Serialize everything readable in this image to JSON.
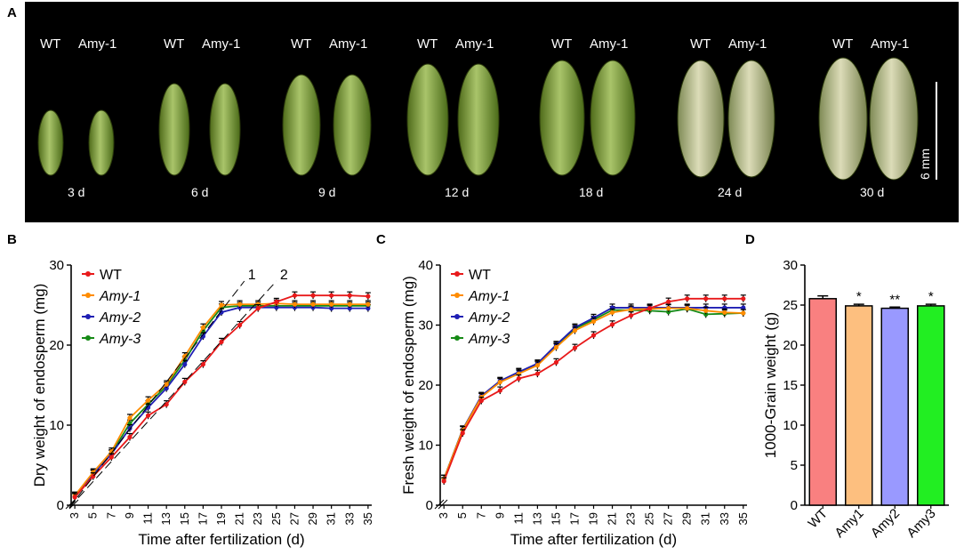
{
  "panel_labels": {
    "a": "A",
    "b": "B",
    "c": "C",
    "d": "D"
  },
  "photo": {
    "genotype_labels": [
      "WT",
      "Amy-1"
    ],
    "days": [
      "3 d",
      "6 d",
      "9 d",
      "12 d",
      "18 d",
      "24 d",
      "30 d"
    ],
    "scale_bar": "6 mm"
  },
  "colors": {
    "WT": "#e8191a",
    "Amy-1": "#ff8c00",
    "Amy-2": "#1f1fb4",
    "Amy-3": "#168a16"
  },
  "chart_data": [
    {
      "id": "B",
      "type": "line",
      "xlabel": "Time after fertilization (d)",
      "ylabel": "Dry weight of endosperm (mg)",
      "ylim": [
        0,
        30
      ],
      "yticks": [
        0,
        10,
        20,
        30
      ],
      "x": [
        3,
        5,
        7,
        9,
        11,
        13,
        15,
        17,
        19,
        21,
        23,
        25,
        27,
        29,
        31,
        33,
        35
      ],
      "series": [
        {
          "name": "WT",
          "values": [
            1.0,
            3.6,
            6.0,
            8.5,
            11.2,
            12.6,
            15.4,
            17.6,
            20.4,
            22.5,
            24.6,
            25.4,
            26.2,
            26.2,
            26.2,
            26.2,
            26.1
          ]
        },
        {
          "name": "Amy-1",
          "values": [
            1.2,
            4.1,
            6.7,
            10.9,
            13.1,
            15.1,
            18.6,
            22.2,
            25.0,
            25.1,
            25.1,
            25.2,
            25.1,
            25.1,
            25.1,
            25.1,
            25.1
          ]
        },
        {
          "name": "Amy-2",
          "values": [
            1.1,
            3.9,
            6.4,
            9.6,
            12.2,
            14.6,
            17.6,
            21.1,
            24.1,
            24.7,
            24.7,
            24.7,
            24.7,
            24.7,
            24.6,
            24.6,
            24.6
          ]
        },
        {
          "name": "Amy-3",
          "values": [
            1.1,
            4.0,
            6.5,
            10.2,
            12.6,
            14.9,
            18.1,
            21.8,
            24.7,
            24.9,
            24.9,
            24.9,
            24.9,
            24.9,
            24.9,
            24.9,
            24.9
          ]
        }
      ],
      "annotations": [
        "1",
        "2"
      ]
    },
    {
      "id": "C",
      "type": "line",
      "xlabel": "Time after fertilization (d)",
      "ylabel": "Fresh weight of endosperm (mg)",
      "ylim": [
        0,
        40
      ],
      "yticks": [
        0,
        10,
        20,
        30,
        40
      ],
      "x": [
        3,
        5,
        7,
        9,
        11,
        13,
        15,
        17,
        19,
        21,
        23,
        25,
        27,
        29,
        31,
        33,
        35
      ],
      "series": [
        {
          "name": "WT",
          "values": [
            4.0,
            12.0,
            17.4,
            19.1,
            21.1,
            21.9,
            23.8,
            26.2,
            28.3,
            30.1,
            31.6,
            32.8,
            33.9,
            34.4,
            34.4,
            34.4,
            34.4
          ]
        },
        {
          "name": "Amy-1",
          "values": [
            4.4,
            12.5,
            18.0,
            20.5,
            21.9,
            23.3,
            26.3,
            29.1,
            30.6,
            32.1,
            32.6,
            32.7,
            32.8,
            32.8,
            32.4,
            32.1,
            32.0
          ]
        },
        {
          "name": "Amy-2",
          "values": [
            4.4,
            12.6,
            18.2,
            20.7,
            22.2,
            23.6,
            26.7,
            29.6,
            31.2,
            32.9,
            32.9,
            32.9,
            32.9,
            32.9,
            32.9,
            32.9,
            32.9
          ]
        },
        {
          "name": "Amy-3",
          "values": [
            4.4,
            12.6,
            18.1,
            20.6,
            22.1,
            23.5,
            26.5,
            29.4,
            30.9,
            32.5,
            32.5,
            32.4,
            32.2,
            32.7,
            31.8,
            31.9,
            32.0
          ]
        }
      ]
    },
    {
      "id": "D",
      "type": "bar",
      "categories": [
        "WT",
        "Amy1",
        "Amy2",
        "Amy3"
      ],
      "values": [
        25.8,
        24.9,
        24.6,
        24.9
      ],
      "errors": [
        0.35,
        0.2,
        0.15,
        0.2
      ],
      "significance": [
        "",
        "*",
        "**",
        "*"
      ],
      "bar_colors": [
        "#f98080",
        "#fdbf7f",
        "#9999ff",
        "#22ee22"
      ],
      "ylabel": "1000-Grain weight (g)",
      "ylim": [
        0,
        30
      ],
      "yticks": [
        0,
        5,
        10,
        15,
        20,
        25,
        30
      ]
    }
  ]
}
